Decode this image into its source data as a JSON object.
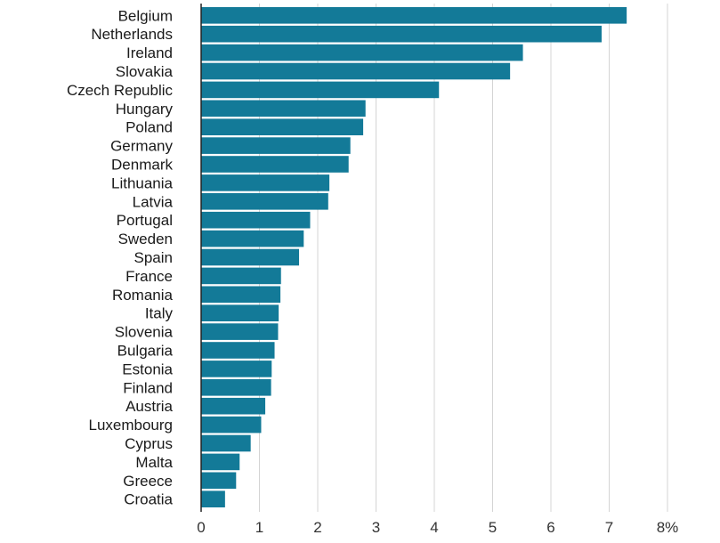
{
  "chart_data": {
    "type": "bar",
    "orientation": "horizontal",
    "title": "",
    "xlabel": "",
    "ylabel": "",
    "categories": [
      "Belgium",
      "Netherlands",
      "Ireland",
      "Slovakia",
      "Czech Republic",
      "Hungary",
      "Poland",
      "Germany",
      "Denmark",
      "Lithuania",
      "Latvia",
      "Portugal",
      "Sweden",
      "Spain",
      "France",
      "Romania",
      "Italy",
      "Slovenia",
      "Bulgaria",
      "Estonia",
      "Finland",
      "Austria",
      "Luxembourg",
      "Cyprus",
      "Malta",
      "Greece",
      "Croatia"
    ],
    "values": [
      7.3,
      6.87,
      5.52,
      5.3,
      4.08,
      2.82,
      2.78,
      2.56,
      2.53,
      2.2,
      2.18,
      1.87,
      1.76,
      1.68,
      1.37,
      1.36,
      1.33,
      1.32,
      1.26,
      1.21,
      1.2,
      1.1,
      1.03,
      0.85,
      0.66,
      0.6,
      0.41
    ],
    "xlim": [
      0,
      8
    ],
    "x_ticks": [
      0,
      1,
      2,
      3,
      4,
      5,
      6,
      7,
      8
    ],
    "x_tick_labels": [
      "0",
      "1",
      "2",
      "3",
      "4",
      "5",
      "6",
      "7",
      "8%"
    ],
    "grid": true,
    "legend": "none",
    "bar_color": "#137a98"
  }
}
